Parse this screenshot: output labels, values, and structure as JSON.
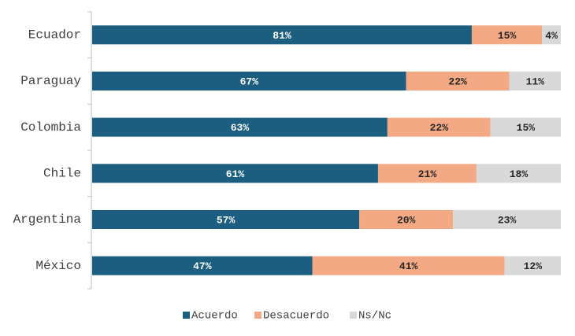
{
  "chart_data": {
    "type": "stacked-barh",
    "categories": [
      "Ecuador",
      "Paraguay",
      "Colombia",
      "Chile",
      "Argentina",
      "México"
    ],
    "xlim": [
      0,
      100
    ],
    "series": [
      {
        "name": "Acuerdo",
        "color": "#1b5e80",
        "values": [
          81,
          67,
          63,
          61,
          57,
          47
        ],
        "value_labels": [
          "81%",
          "67%",
          "63%",
          "61%",
          "57%",
          "47%"
        ]
      },
      {
        "name": "Desacuerdo",
        "color": "#f2a984",
        "values": [
          15,
          22,
          22,
          21,
          20,
          41
        ],
        "value_labels": [
          "15%",
          "22%",
          "22%",
          "21%",
          "20%",
          "41%"
        ]
      },
      {
        "name": "Ns/Nc",
        "color": "#d9d9d9",
        "values": [
          4,
          11,
          15,
          18,
          23,
          12
        ],
        "value_labels": [
          "4%",
          "11%",
          "15%",
          "18%",
          "23%",
          "12%"
        ]
      }
    ],
    "legend": "bottom"
  }
}
